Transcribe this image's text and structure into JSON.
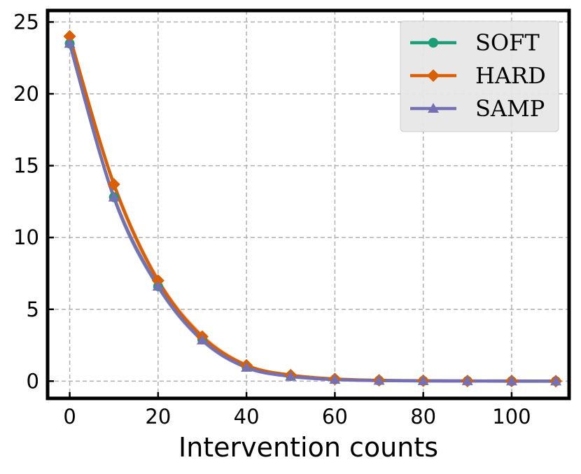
{
  "chart_data": {
    "type": "line",
    "title": "",
    "xlabel": "Intervention counts",
    "ylabel": "",
    "xlim": [
      -5,
      113
    ],
    "ylim": [
      -1.2,
      25.8
    ],
    "xticks": [
      0,
      20,
      40,
      60,
      80,
      100
    ],
    "yticks": [
      0,
      5,
      10,
      15,
      20,
      25
    ],
    "grid": true,
    "legend_position": "top-right",
    "x": [
      0,
      10,
      20,
      30,
      40,
      50,
      60,
      70,
      80,
      90,
      100,
      110
    ],
    "series": [
      {
        "name": "SOFT",
        "color": "#1b9e77",
        "marker": "circle",
        "values": [
          23.5,
          12.8,
          6.6,
          2.9,
          1.0,
          0.35,
          0.12,
          0.04,
          0.02,
          0.01,
          0.0,
          0.0
        ],
        "band_width": [
          0.25,
          0.35,
          0.25,
          0.2,
          0.12,
          0.06,
          0.03,
          0.02,
          0.01,
          0.01,
          0.01,
          0.01
        ]
      },
      {
        "name": "HARD",
        "color": "#d95f02",
        "marker": "diamond",
        "values": [
          24.0,
          13.7,
          7.0,
          3.1,
          1.1,
          0.42,
          0.15,
          0.06,
          0.03,
          0.01,
          0.01,
          0.0
        ],
        "band_width": [
          0.3,
          0.4,
          0.3,
          0.25,
          0.15,
          0.07,
          0.04,
          0.02,
          0.01,
          0.01,
          0.01,
          0.01
        ]
      },
      {
        "name": "SAMP",
        "color": "#7570b3",
        "marker": "triangle",
        "values": [
          23.5,
          12.8,
          6.6,
          2.85,
          0.95,
          0.33,
          0.11,
          0.04,
          0.02,
          0.01,
          0.0,
          0.0
        ],
        "band_width": [
          0.25,
          0.35,
          0.25,
          0.2,
          0.12,
          0.06,
          0.03,
          0.02,
          0.01,
          0.01,
          0.01,
          0.01
        ]
      }
    ]
  }
}
